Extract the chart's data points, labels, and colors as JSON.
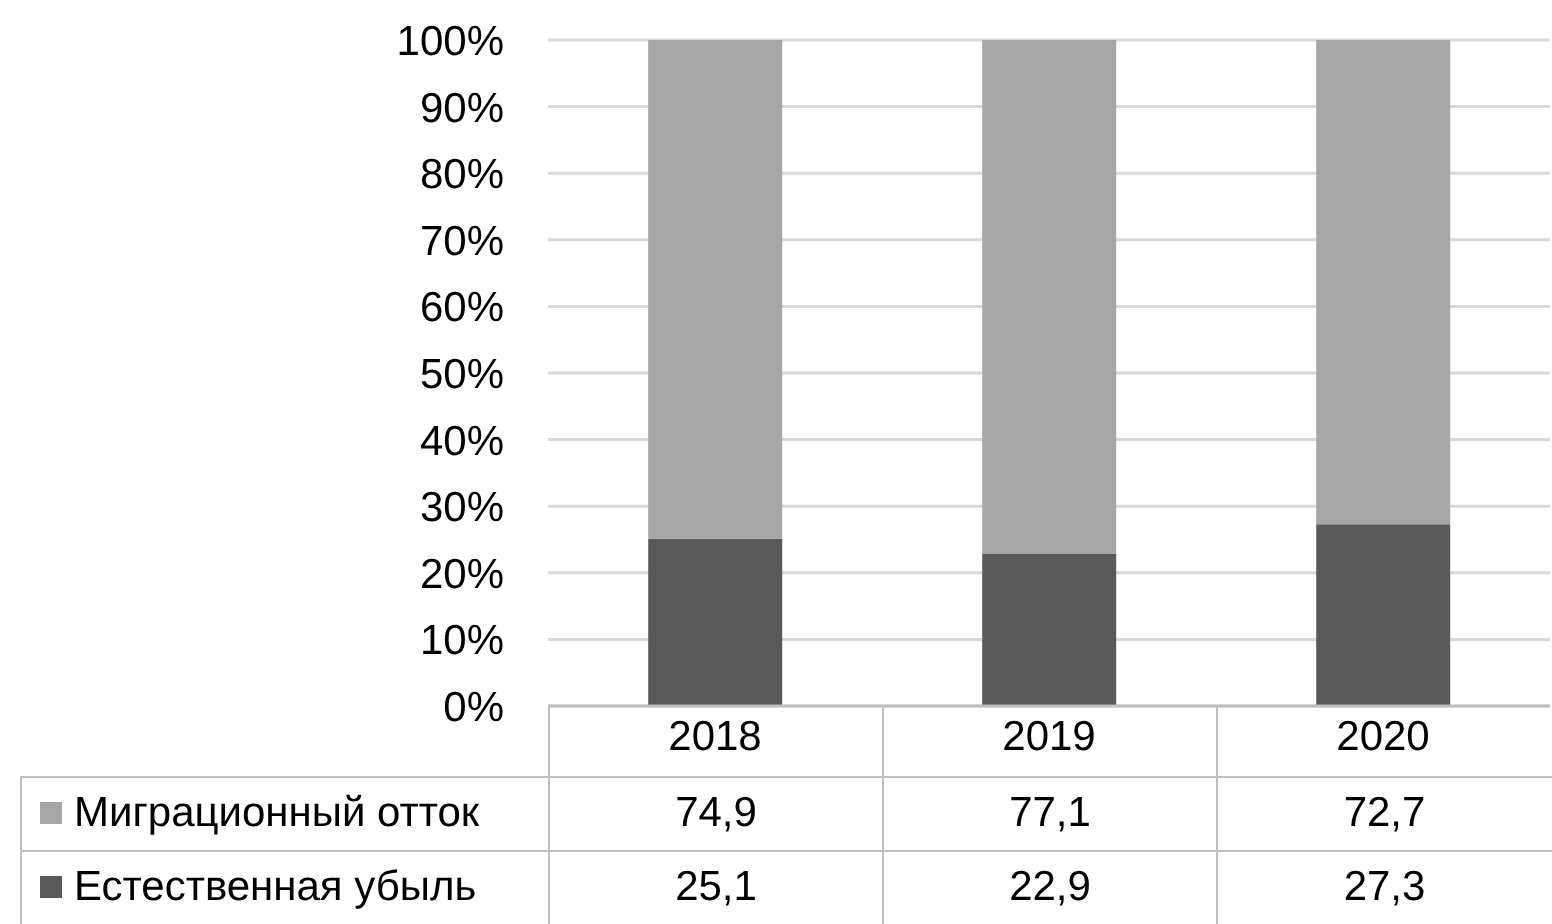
{
  "chart_data": {
    "type": "bar",
    "categories": [
      "2018",
      "2019",
      "2020"
    ],
    "series": [
      {
        "name": "Естественная убыль",
        "color": "#595959",
        "values": [
          25.1,
          22.9,
          27.3
        ],
        "value_labels": [
          "25,1",
          "22,9",
          "27,3"
        ]
      },
      {
        "name": "Миграционный отток",
        "color": "#a6a6a6",
        "values": [
          74.9,
          77.1,
          72.7
        ],
        "value_labels": [
          "74,9",
          "77,1",
          "72,7"
        ]
      }
    ],
    "stacked": true,
    "ylim": [
      0,
      100
    ],
    "yticks": [
      {
        "value": 0,
        "label": "0%"
      },
      {
        "value": 10,
        "label": "10%"
      },
      {
        "value": 20,
        "label": "20%"
      },
      {
        "value": 30,
        "label": "30%"
      },
      {
        "value": 40,
        "label": "40%"
      },
      {
        "value": 50,
        "label": "50%"
      },
      {
        "value": 60,
        "label": "60%"
      },
      {
        "value": 70,
        "label": "70%"
      },
      {
        "value": 80,
        "label": "80%"
      },
      {
        "value": 90,
        "label": "90%"
      },
      {
        "value": 100,
        "label": "100%"
      }
    ],
    "grid": "y",
    "legend": "bottom left"
  }
}
